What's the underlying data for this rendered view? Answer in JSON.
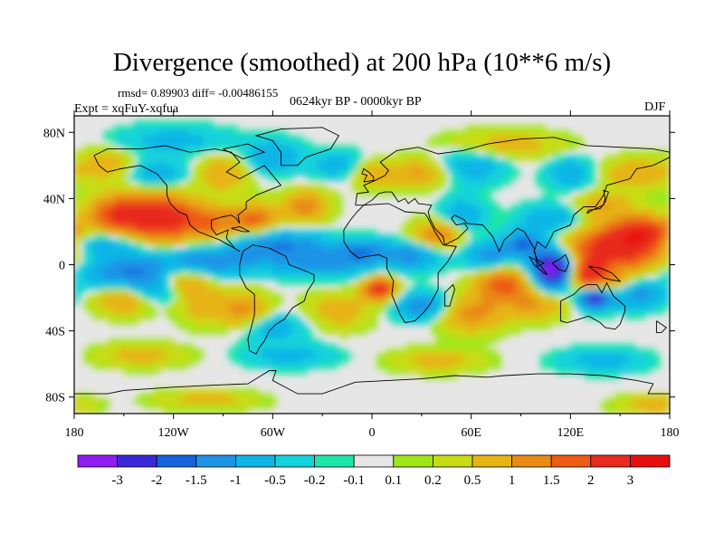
{
  "chart_data": {
    "type": "heatmap",
    "title": "Divergence (smoothed) at 200 hPa (10**6 m/s)",
    "stats_line": "rmsd= 0.89903 diff= -0.00486155",
    "experiment_label": "Expt = xqFuY-xqfua",
    "period_label": "0624kyr BP - 0000kyr BP",
    "season": "DJF",
    "x_axis": {
      "range": [
        -180,
        180
      ],
      "ticks": [
        -180,
        -120,
        -60,
        0,
        60,
        120,
        180
      ],
      "tick_labels": [
        "180",
        "120W",
        "60W",
        "0",
        "60E",
        "120E",
        "180"
      ]
    },
    "y_axis": {
      "range": [
        -90,
        90
      ],
      "ticks": [
        80,
        40,
        0,
        -40,
        -80
      ],
      "tick_labels": [
        "80N",
        "40N",
        "0",
        "40S",
        "80S"
      ]
    },
    "colorbar": {
      "levels": [
        -3,
        -2,
        -1.5,
        -1,
        -0.5,
        -0.2,
        -0.1,
        0.1,
        0.2,
        0.5,
        1,
        1.5,
        2,
        3
      ],
      "labels": [
        "-3",
        "-2",
        "-1.5",
        "-1",
        "-0.5",
        "-0.2",
        "-0.1",
        "0.1",
        "0.2",
        "0.5",
        "1",
        "1.5",
        "2",
        "3"
      ],
      "colors": [
        "#8f1cf0",
        "#3c27d9",
        "#1463dc",
        "#1f93e6",
        "#10b5e6",
        "#14d2dc",
        "#1ee6a8",
        "#e6e6e6",
        "#9ee61a",
        "#c8dc14",
        "#e6b414",
        "#e88a14",
        "#ef5a14",
        "#e82b1e",
        "#e80e0e"
      ]
    },
    "features": [
      {
        "name": "north-pacific-subtropical-positive",
        "lon": -130,
        "lat": 28,
        "value": 2.2
      },
      {
        "name": "north-pacific-negative-band",
        "lon": -140,
        "lat": 10,
        "value": -1.1
      },
      {
        "name": "equatorial-pacific-negative",
        "lon": -100,
        "lat": 0,
        "value": -1.2
      },
      {
        "name": "north-atlantic-positive",
        "lon": -40,
        "lat": 35,
        "value": 1.1
      },
      {
        "name": "maritime-continent-negative",
        "lon": 110,
        "lat": -3,
        "value": -3.2
      },
      {
        "name": "western-pacific-positive",
        "lon": 150,
        "lat": 10,
        "value": 2.6
      },
      {
        "name": "gulf-of-guinea-positive",
        "lon": 5,
        "lat": -15,
        "value": 2.1
      },
      {
        "name": "northern-australia-negative",
        "lon": 135,
        "lat": -18,
        "value": -2.4
      },
      {
        "name": "indian-ocean-positive",
        "lon": 80,
        "lat": -12,
        "value": 1.6
      },
      {
        "name": "southern-ocean-positive",
        "lon": -20,
        "lat": -30,
        "value": 0.8
      }
    ]
  }
}
